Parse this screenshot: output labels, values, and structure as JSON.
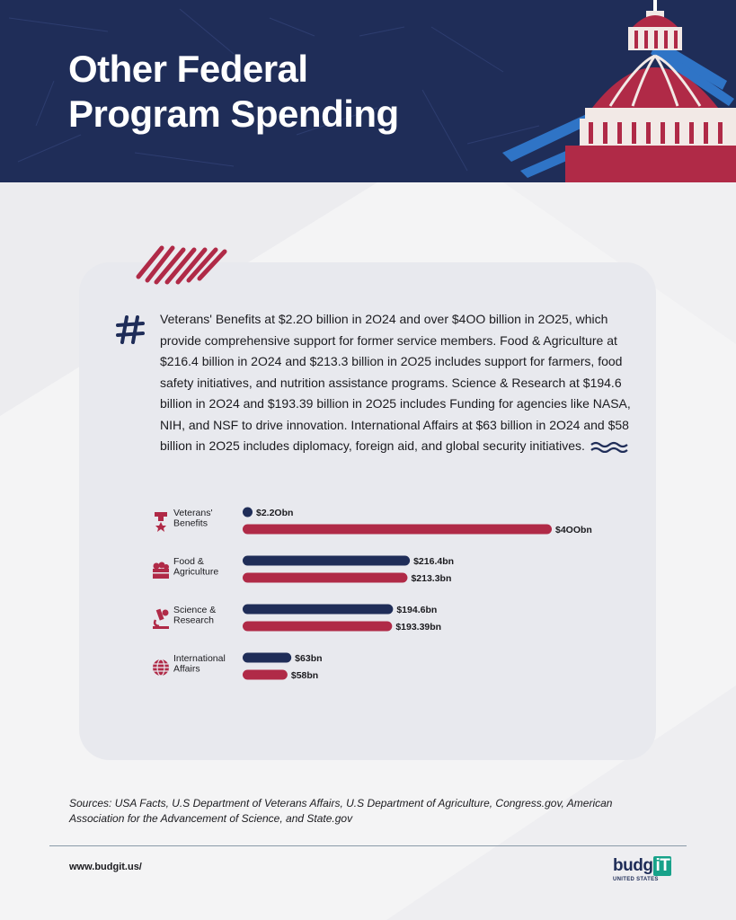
{
  "header": {
    "title_line1": "Other Federal",
    "title_line2": "Program Spending"
  },
  "description": "Veterans' Benefits at $2.2O billion in 2O24 and over $4OO billion in 2O25, which provide comprehensive support for former service members. Food & Agriculture at $216.4 billion in 2O24 and $213.3 billion in 2O25 includes support for farmers, food safety initiatives, and nutrition assistance programs. Science & Research at $194.6 billion in 2O24 and $193.39 billion in 2O25 includes Funding for agencies like NASA, NIH, and NSF to drive innovation. International Affairs at $63 billion in 2O24 and $58 billion in 2O25 includes diplomacy, foreign aid, and global security initiatives.",
  "icons": {
    "hash": "hash-icon",
    "wave": "wave-icon",
    "categories": [
      "medal-icon",
      "crate-icon",
      "microscope-icon",
      "globe-icon"
    ]
  },
  "colors": {
    "navy": "#1f2d58",
    "red": "#b02a47",
    "accent_blue": "#2f74c6",
    "card": "#e8e9ee"
  },
  "chart_data": {
    "type": "bar",
    "orientation": "horizontal",
    "categories": [
      [
        "Veterans'",
        "Benefits"
      ],
      [
        "Food &",
        "Agriculture"
      ],
      [
        "Science &",
        "Research"
      ],
      [
        "International",
        "Affairs"
      ]
    ],
    "series": [
      {
        "color": "#1f2d58",
        "values": [
          2.2,
          216.4,
          194.6,
          63
        ],
        "labels": [
          "$2.2Obn",
          "$216.4bn",
          "$194.6bn",
          "$63bn"
        ]
      },
      {
        "color": "#b02a47",
        "values": [
          400,
          213.3,
          193.39,
          58
        ],
        "labels": [
          "$4OObn",
          "$213.3bn",
          "$193.39bn",
          "$58bn"
        ]
      }
    ],
    "xlim": [
      0,
      400
    ]
  },
  "footer": {
    "sources": "Sources: USA Facts, U.S Department of Veterans Affairs, U.S Department of Agriculture, Congress.gov, American Association for the Advancement of Science, and State.gov",
    "website": "www.budgit.us/",
    "logo_word": "budg",
    "logo_tt": "iT",
    "logo_sub": "UNITED STATES"
  }
}
